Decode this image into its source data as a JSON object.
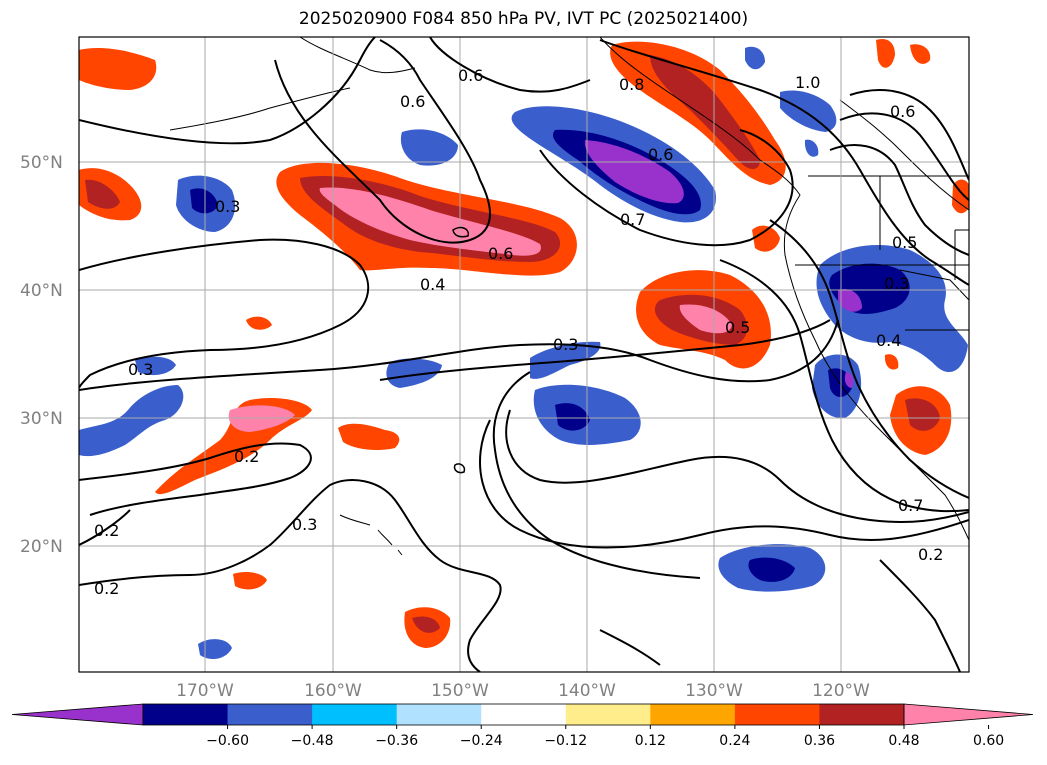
{
  "title": "2025020900 F084 850 hPa PV, IVT PC (2025021400)",
  "latitude_labels": [
    "50°N",
    "40°N",
    "30°N",
    "20°N"
  ],
  "longitude_labels": [
    "170°W",
    "160°W",
    "150°W",
    "140°W",
    "130°W",
    "120°W"
  ],
  "contour_labels": [
    {
      "text": "0.6"
    },
    {
      "text": "0.6"
    },
    {
      "text": "0.8"
    },
    {
      "text": "1.0"
    },
    {
      "text": "0.6"
    },
    {
      "text": "0.6"
    },
    {
      "text": "0.7"
    },
    {
      "text": "0.3"
    },
    {
      "text": "0.6"
    },
    {
      "text": "0.4"
    },
    {
      "text": "0.5"
    },
    {
      "text": "0.3"
    },
    {
      "text": "0.3"
    },
    {
      "text": "0.5"
    },
    {
      "text": "0.3"
    },
    {
      "text": "0.4"
    },
    {
      "text": "0.2"
    },
    {
      "text": "0.3"
    },
    {
      "text": "0.2"
    },
    {
      "text": "0.2"
    },
    {
      "text": "0.7"
    },
    {
      "text": "0.2"
    }
  ],
  "colorbar": {
    "ticks": [
      "−0.60",
      "−0.48",
      "−0.36",
      "−0.24",
      "−0.12",
      "0.12",
      "0.24",
      "0.36",
      "0.48",
      "0.60"
    ],
    "colors": [
      "#9932cc",
      "#00008b",
      "#3a5fcd",
      "#00bfff",
      "#b0e2ff",
      "#ffffff",
      "#ffec8b",
      "#ffa500",
      "#ff4500",
      "#b22222",
      "#ff82ab"
    ]
  }
}
